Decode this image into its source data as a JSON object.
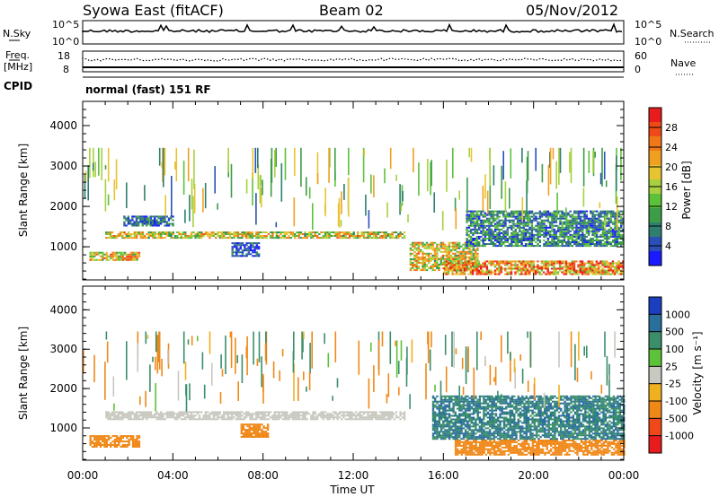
{
  "header": {
    "title": "Syowa East (fitACF)",
    "beam": "Beam 02",
    "date": "05/Nov/2012"
  },
  "top_panels": {
    "nsky_label": "N.Sky",
    "nsky_ticks": [
      "10^5",
      "10^0"
    ],
    "nsearch_label": "N.Search",
    "nsearch_ticks": [
      "10^5",
      "10^0"
    ],
    "freq_label": "Freq.",
    "freq_unit": "[MHz]",
    "freq_ticks": [
      "18",
      "8"
    ],
    "nave_label": "Nave",
    "nave_ticks": [
      "60",
      "0"
    ],
    "cpid_label": "CPID",
    "cpid_text": "normal (fast) 151 RF"
  },
  "chart_data": [
    {
      "type": "heatmap",
      "name": "power",
      "xlabel": "",
      "ylabel": "Slant Range [km]",
      "x_ticks": [
        "00:00",
        "04:00",
        "08:00",
        "12:00",
        "16:00",
        "20:00",
        "00:00"
      ],
      "y_ticks": [
        1000,
        2000,
        3000,
        4000
      ],
      "ylim": [
        180,
        4600
      ],
      "x_range_hours": [
        0,
        24
      ],
      "colorbar": {
        "label": "Power [dB]",
        "ticks": [
          "4",
          "8",
          "12",
          "16",
          "20",
          "24",
          "28"
        ],
        "colors": [
          "#1a1aff",
          "#2a4fb8",
          "#2e7f6f",
          "#3d9c48",
          "#5cc23a",
          "#a8d040",
          "#e8c430",
          "#f0a020",
          "#f07818",
          "#f04a18",
          "#e81c1c"
        ]
      },
      "bands": [
        {
          "t0": 1.0,
          "t1": 14.3,
          "r0": 1200,
          "r1": 1350,
          "value": 18
        },
        {
          "t0": 1.8,
          "t1": 4.0,
          "r0": 1500,
          "r1": 1750,
          "value": 6
        },
        {
          "t0": 0.3,
          "t1": 2.5,
          "r0": 650,
          "r1": 850,
          "value": 20
        },
        {
          "t0": 6.6,
          "t1": 7.8,
          "r0": 750,
          "r1": 1100,
          "value": 4
        },
        {
          "t0": 14.5,
          "t1": 17.5,
          "r0": 400,
          "r1": 1100,
          "value": 18
        },
        {
          "t0": 16.0,
          "t1": 24.0,
          "r0": 300,
          "r1": 650,
          "value": 24
        },
        {
          "t0": 17.0,
          "t1": 24.0,
          "r0": 1000,
          "r1": 1900,
          "value": 8
        }
      ]
    },
    {
      "type": "heatmap",
      "name": "velocity",
      "xlabel": "Time UT",
      "ylabel": "Slant Range [km]",
      "x_ticks": [
        "00:00",
        "04:00",
        "08:00",
        "12:00",
        "16:00",
        "20:00",
        "00:00"
      ],
      "y_ticks": [
        1000,
        2000,
        3000,
        4000
      ],
      "ylim": [
        180,
        4600
      ],
      "x_range_hours": [
        0,
        24
      ],
      "colorbar": {
        "label": "Velocity [m s⁻¹]",
        "ticks": [
          "1000",
          "500",
          "100",
          "25",
          "-25",
          "-100",
          "-500",
          "-1000"
        ],
        "colors": [
          "#1c3fbf",
          "#2a6e9c",
          "#3a8f6a",
          "#5cc23a",
          "#c8c8c0",
          "#f0b020",
          "#f08818",
          "#f04818",
          "#e81c1c"
        ]
      },
      "bands": [
        {
          "t0": 1.0,
          "t1": 14.3,
          "r0": 1200,
          "r1": 1400,
          "value": 0
        },
        {
          "t0": 0.3,
          "t1": 2.5,
          "r0": 500,
          "r1": 800,
          "value": -150
        },
        {
          "t0": 7.0,
          "t1": 8.2,
          "r0": 750,
          "r1": 1100,
          "value": -150
        },
        {
          "t0": 16.5,
          "t1": 24.0,
          "r0": 300,
          "r1": 700,
          "value": -150
        },
        {
          "t0": 15.5,
          "t1": 24.0,
          "r0": 700,
          "r1": 1800,
          "value": 300
        }
      ]
    }
  ]
}
